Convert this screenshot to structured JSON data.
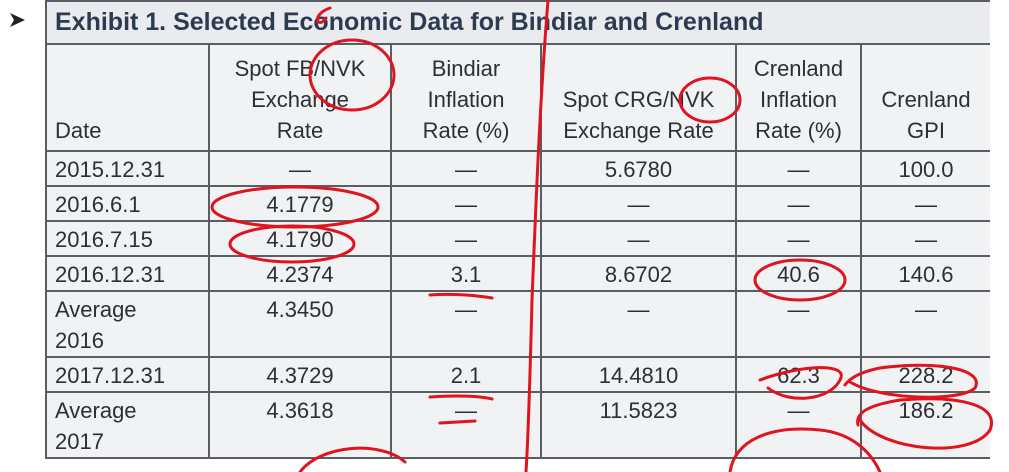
{
  "header": {
    "title": "Exhibit 1. Selected Economic Data for Bindiar and Crenland"
  },
  "table": {
    "columns": [
      [
        "Date"
      ],
      [
        "Spot FB/NVK",
        "Exchange",
        "Rate"
      ],
      [
        "Bindiar",
        "Inflation",
        "Rate (%)"
      ],
      [
        "Spot CRG/NVK",
        "Exchange Rate"
      ],
      [
        "Crenland",
        "Inflation",
        "Rate (%)"
      ],
      [
        "Crenland",
        "GPI"
      ]
    ],
    "rows": [
      [
        "2015.12.31",
        "—",
        "—",
        "5.6780",
        "—",
        "100.0"
      ],
      [
        "2016.6.1",
        "4.1779",
        "—",
        "—",
        "—",
        "—"
      ],
      [
        "2016.7.15",
        "4.1790",
        "—",
        "—",
        "—",
        "—"
      ],
      [
        "2016.12.31",
        "4.2374",
        "3.1",
        "8.6702",
        "40.6",
        "140.6"
      ],
      [
        "Average 2016",
        "4.3450",
        "—",
        "—",
        "—",
        "—"
      ],
      [
        "2017.12.31",
        "4.3729",
        "2.1",
        "14.4810",
        "62.3",
        "228.2"
      ],
      [
        "Average 2017",
        "4.3618",
        "—",
        "11.5823",
        "—",
        "186.2"
      ]
    ]
  }
}
